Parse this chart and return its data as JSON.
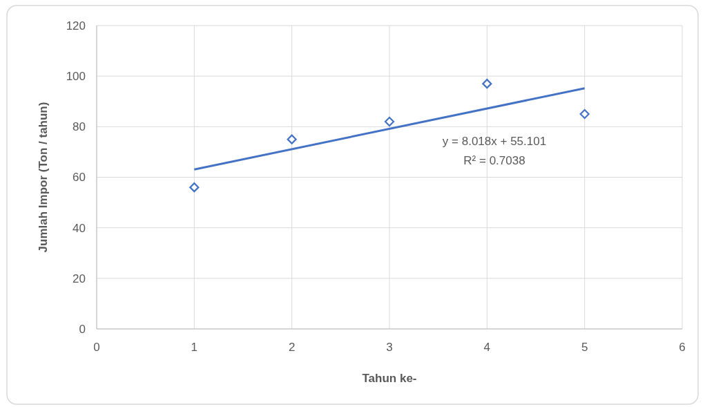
{
  "chart_data": {
    "type": "scatter",
    "xlabel": "Tahun ke-",
    "ylabel": "Jumlah Impor (Ton / tahun)",
    "xlim": [
      0,
      6
    ],
    "xticks": [
      0,
      1,
      2,
      3,
      4,
      5,
      6
    ],
    "ylim": [
      0,
      120
    ],
    "yticks": [
      0,
      20,
      40,
      60,
      80,
      100,
      120
    ],
    "grid": true,
    "series": [
      {
        "x": [
          1,
          2,
          3,
          4,
          5
        ],
        "values": [
          56,
          75,
          82,
          97,
          85
        ],
        "color": "#4472c4",
        "marker": "diamond"
      },
      {
        "type": "line",
        "x": [
          1,
          5
        ],
        "values": [
          63.1,
          95.2
        ],
        "color": "#4472c4",
        "marker": "none",
        "line_style": "solid"
      }
    ],
    "annotations": [
      "y = 8.018x + 55.101",
      "R² = 0.7038"
    ]
  }
}
